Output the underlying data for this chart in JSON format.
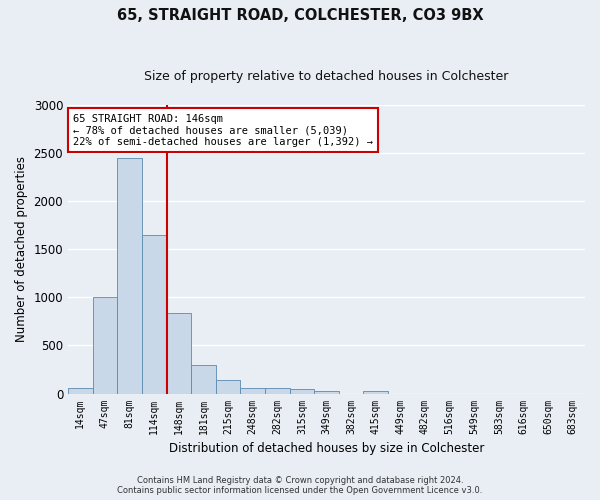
{
  "title_line1": "65, STRAIGHT ROAD, COLCHESTER, CO3 9BX",
  "title_line2": "Size of property relative to detached houses in Colchester",
  "xlabel": "Distribution of detached houses by size in Colchester",
  "ylabel": "Number of detached properties",
  "categories": [
    "14sqm",
    "47sqm",
    "81sqm",
    "114sqm",
    "148sqm",
    "181sqm",
    "215sqm",
    "248sqm",
    "282sqm",
    "315sqm",
    "349sqm",
    "382sqm",
    "415sqm",
    "449sqm",
    "482sqm",
    "516sqm",
    "549sqm",
    "583sqm",
    "616sqm",
    "650sqm",
    "683sqm"
  ],
  "values": [
    60,
    1005,
    2450,
    1650,
    840,
    300,
    140,
    55,
    55,
    50,
    30,
    0,
    30,
    0,
    0,
    0,
    0,
    0,
    0,
    0,
    0
  ],
  "bar_color": "#c8d8e8",
  "bar_edge_color": "#5a8ab0",
  "ylim": [
    0,
    3000
  ],
  "yticks": [
    0,
    500,
    1000,
    1500,
    2000,
    2500,
    3000
  ],
  "vline_x": 3.5,
  "vline_color": "#cc0000",
  "annotation_text": "65 STRAIGHT ROAD: 146sqm\n← 78% of detached houses are smaller (5,039)\n22% of semi-detached houses are larger (1,392) →",
  "annotation_box_color": "#cc0000",
  "footer_line1": "Contains HM Land Registry data © Crown copyright and database right 2024.",
  "footer_line2": "Contains public sector information licensed under the Open Government Licence v3.0.",
  "background_color": "#e8eef4",
  "plot_bg_color": "#e8eef4",
  "grid_color": "#ffffff"
}
